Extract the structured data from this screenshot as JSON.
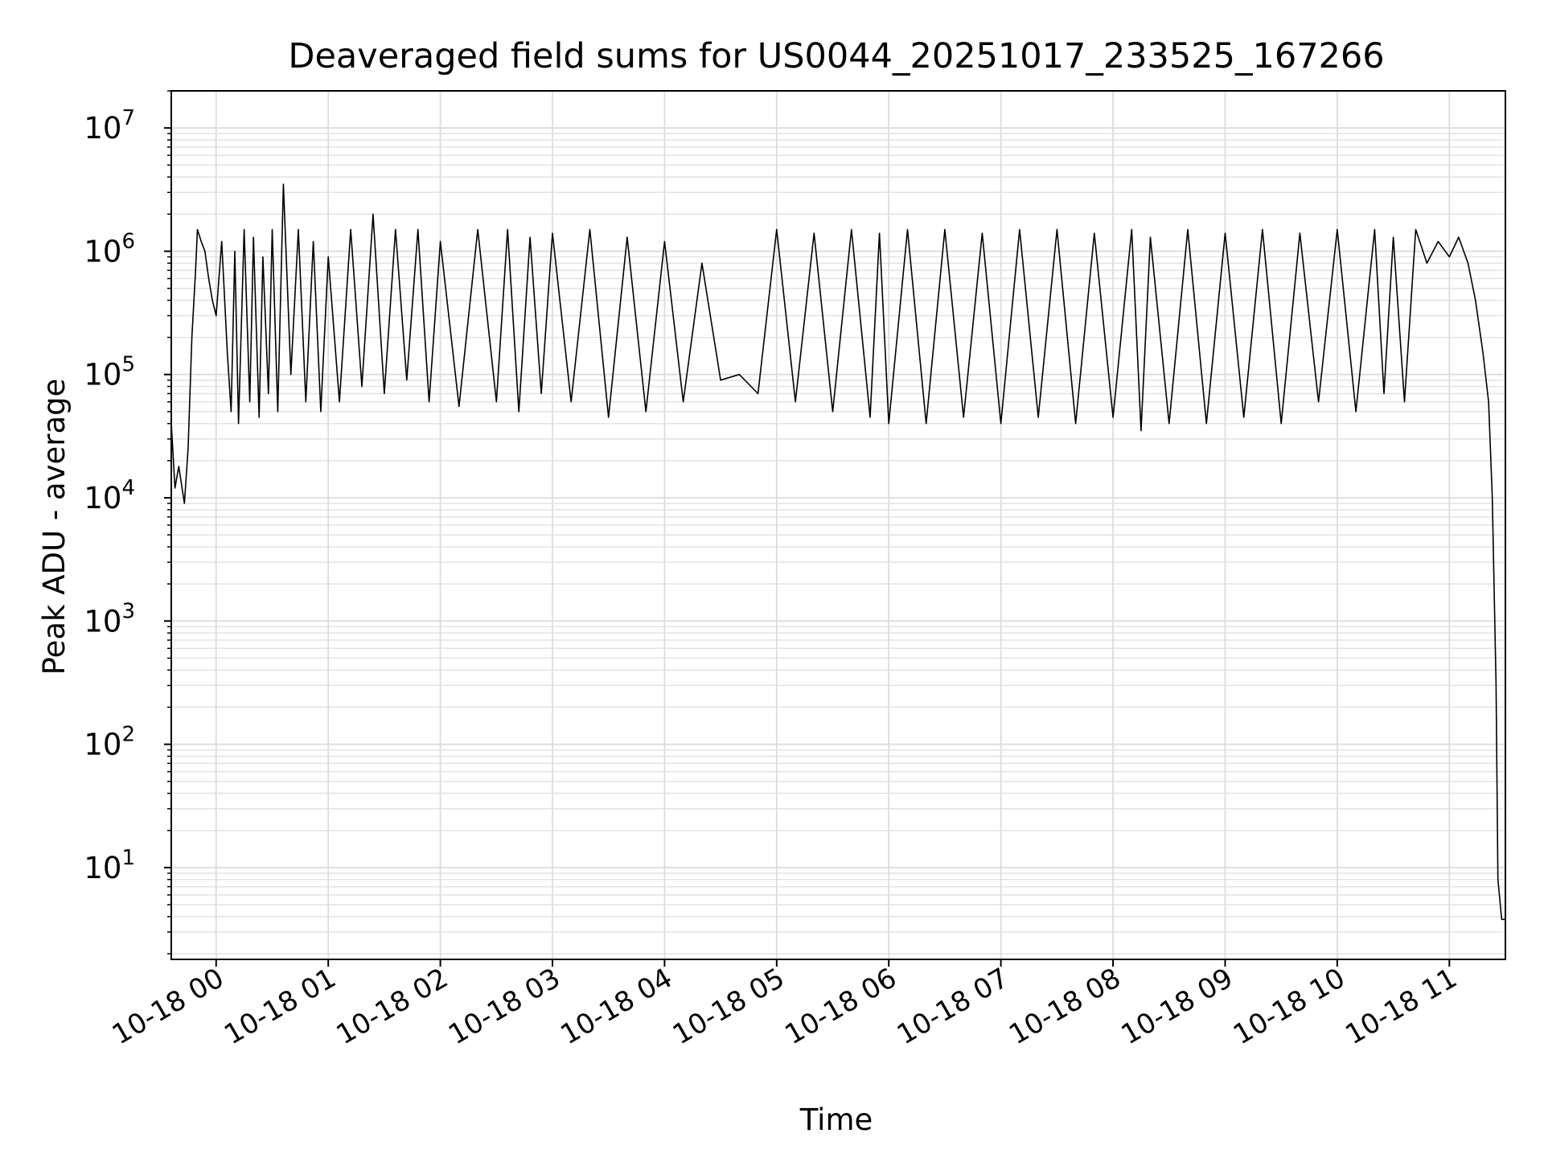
{
  "chart_data": {
    "type": "line",
    "title": "Deaveraged field sums for US0044_20251017_233525_167266",
    "xlabel": "Time",
    "ylabel": "Peak ADU - average",
    "yscale": "log",
    "grid": true,
    "grid_minor": true,
    "xlim": [
      "2025-10-17T23:36",
      "2025-10-18T11:30"
    ],
    "ylim": [
      1.8,
      20000000
    ],
    "x_ticks": [
      {
        "label": "10-18 00",
        "t": "2025-10-18T00:00"
      },
      {
        "label": "10-18 01",
        "t": "2025-10-18T01:00"
      },
      {
        "label": "10-18 02",
        "t": "2025-10-18T02:00"
      },
      {
        "label": "10-18 03",
        "t": "2025-10-18T03:00"
      },
      {
        "label": "10-18 04",
        "t": "2025-10-18T04:00"
      },
      {
        "label": "10-18 05",
        "t": "2025-10-18T05:00"
      },
      {
        "label": "10-18 06",
        "t": "2025-10-18T06:00"
      },
      {
        "label": "10-18 07",
        "t": "2025-10-18T07:00"
      },
      {
        "label": "10-18 08",
        "t": "2025-10-18T08:00"
      },
      {
        "label": "10-18 09",
        "t": "2025-10-18T09:00"
      },
      {
        "label": "10-18 10",
        "t": "2025-10-18T10:00"
      },
      {
        "label": "10-18 11",
        "t": "2025-10-18T11:00"
      }
    ],
    "y_ticks": [
      {
        "base": "10",
        "exp": "1",
        "v": 10
      },
      {
        "base": "10",
        "exp": "2",
        "v": 100
      },
      {
        "base": "10",
        "exp": "3",
        "v": 1000
      },
      {
        "base": "10",
        "exp": "4",
        "v": 10000
      },
      {
        "base": "10",
        "exp": "5",
        "v": 100000
      },
      {
        "base": "10",
        "exp": "6",
        "v": 1000000
      },
      {
        "base": "10",
        "exp": "7",
        "v": 10000000
      }
    ],
    "series": [
      {
        "color": "#000000",
        "x": [
          "2025-10-17T23:36",
          "2025-10-17T23:38",
          "2025-10-17T23:40",
          "2025-10-17T23:43",
          "2025-10-17T23:45",
          "2025-10-17T23:47",
          "2025-10-17T23:49",
          "2025-10-17T23:50",
          "2025-10-17T23:52",
          "2025-10-17T23:54",
          "2025-10-17T23:56",
          "2025-10-17T23:58",
          "2025-10-18T00:00",
          "2025-10-18T00:03",
          "2025-10-18T00:06",
          "2025-10-18T00:08",
          "2025-10-18T00:10",
          "2025-10-18T00:12",
          "2025-10-18T00:15",
          "2025-10-18T00:18",
          "2025-10-18T00:20",
          "2025-10-18T00:23",
          "2025-10-18T00:25",
          "2025-10-18T00:28",
          "2025-10-18T00:30",
          "2025-10-18T00:33",
          "2025-10-18T00:36",
          "2025-10-18T00:40",
          "2025-10-18T00:44",
          "2025-10-18T00:48",
          "2025-10-18T00:52",
          "2025-10-18T00:56",
          "2025-10-18T01:00",
          "2025-10-18T01:06",
          "2025-10-18T01:12",
          "2025-10-18T01:18",
          "2025-10-18T01:24",
          "2025-10-18T01:30",
          "2025-10-18T01:36",
          "2025-10-18T01:42",
          "2025-10-18T01:48",
          "2025-10-18T01:54",
          "2025-10-18T02:00",
          "2025-10-18T02:10",
          "2025-10-18T02:20",
          "2025-10-18T02:30",
          "2025-10-18T02:36",
          "2025-10-18T02:42",
          "2025-10-18T02:48",
          "2025-10-18T02:54",
          "2025-10-18T03:00",
          "2025-10-18T03:10",
          "2025-10-18T03:20",
          "2025-10-18T03:30",
          "2025-10-18T03:40",
          "2025-10-18T03:50",
          "2025-10-18T04:00",
          "2025-10-18T04:10",
          "2025-10-18T04:20",
          "2025-10-18T04:30",
          "2025-10-18T04:40",
          "2025-10-18T04:50",
          "2025-10-18T05:00",
          "2025-10-18T05:10",
          "2025-10-18T05:20",
          "2025-10-18T05:30",
          "2025-10-18T05:40",
          "2025-10-18T05:50",
          "2025-10-18T05:55",
          "2025-10-18T06:00",
          "2025-10-18T06:10",
          "2025-10-18T06:20",
          "2025-10-18T06:30",
          "2025-10-18T06:40",
          "2025-10-18T06:50",
          "2025-10-18T07:00",
          "2025-10-18T07:10",
          "2025-10-18T07:20",
          "2025-10-18T07:30",
          "2025-10-18T07:40",
          "2025-10-18T07:50",
          "2025-10-18T08:00",
          "2025-10-18T08:10",
          "2025-10-18T08:15",
          "2025-10-18T08:20",
          "2025-10-18T08:30",
          "2025-10-18T08:40",
          "2025-10-18T08:50",
          "2025-10-18T09:00",
          "2025-10-18T09:10",
          "2025-10-18T09:20",
          "2025-10-18T09:30",
          "2025-10-18T09:40",
          "2025-10-18T09:50",
          "2025-10-18T10:00",
          "2025-10-18T10:10",
          "2025-10-18T10:20",
          "2025-10-18T10:25",
          "2025-10-18T10:30",
          "2025-10-18T10:36",
          "2025-10-18T10:42",
          "2025-10-18T10:48",
          "2025-10-18T10:54",
          "2025-10-18T11:00",
          "2025-10-18T11:05",
          "2025-10-18T11:10",
          "2025-10-18T11:14",
          "2025-10-18T11:18",
          "2025-10-18T11:21",
          "2025-10-18T11:23",
          "2025-10-18T11:25",
          "2025-10-18T11:26",
          "2025-10-18T11:28",
          "2025-10-18T11:30"
        ],
        "y": [
          40000,
          12000,
          18000,
          9000,
          25000,
          200000,
          700000,
          1500000,
          1200000,
          1000000,
          600000,
          400000,
          300000,
          1200000,
          150000,
          50000,
          1000000,
          40000,
          1500000,
          60000,
          1300000,
          45000,
          900000,
          70000,
          1500000,
          50000,
          3500000,
          100000,
          1500000,
          60000,
          1200000,
          50000,
          900000,
          60000,
          1500000,
          80000,
          2000000,
          70000,
          1500000,
          90000,
          1500000,
          60000,
          1200000,
          55000,
          1500000,
          60000,
          1500000,
          50000,
          1300000,
          70000,
          1400000,
          60000,
          1500000,
          45000,
          1300000,
          50000,
          1200000,
          60000,
          800000,
          90000,
          100000,
          70000,
          1500000,
          60000,
          1400000,
          50000,
          1500000,
          45000,
          1400000,
          40000,
          1500000,
          40000,
          1500000,
          45000,
          1400000,
          40000,
          1500000,
          45000,
          1500000,
          40000,
          1400000,
          45000,
          1500000,
          35000,
          1300000,
          40000,
          1500000,
          40000,
          1400000,
          45000,
          1500000,
          40000,
          1400000,
          60000,
          1500000,
          50000,
          1500000,
          70000,
          1300000,
          60000,
          1500000,
          800000,
          1200000,
          900000,
          1300000,
          800000,
          400000,
          150000,
          60000,
          10000,
          300,
          8,
          3.8,
          3.8
        ]
      }
    ]
  }
}
